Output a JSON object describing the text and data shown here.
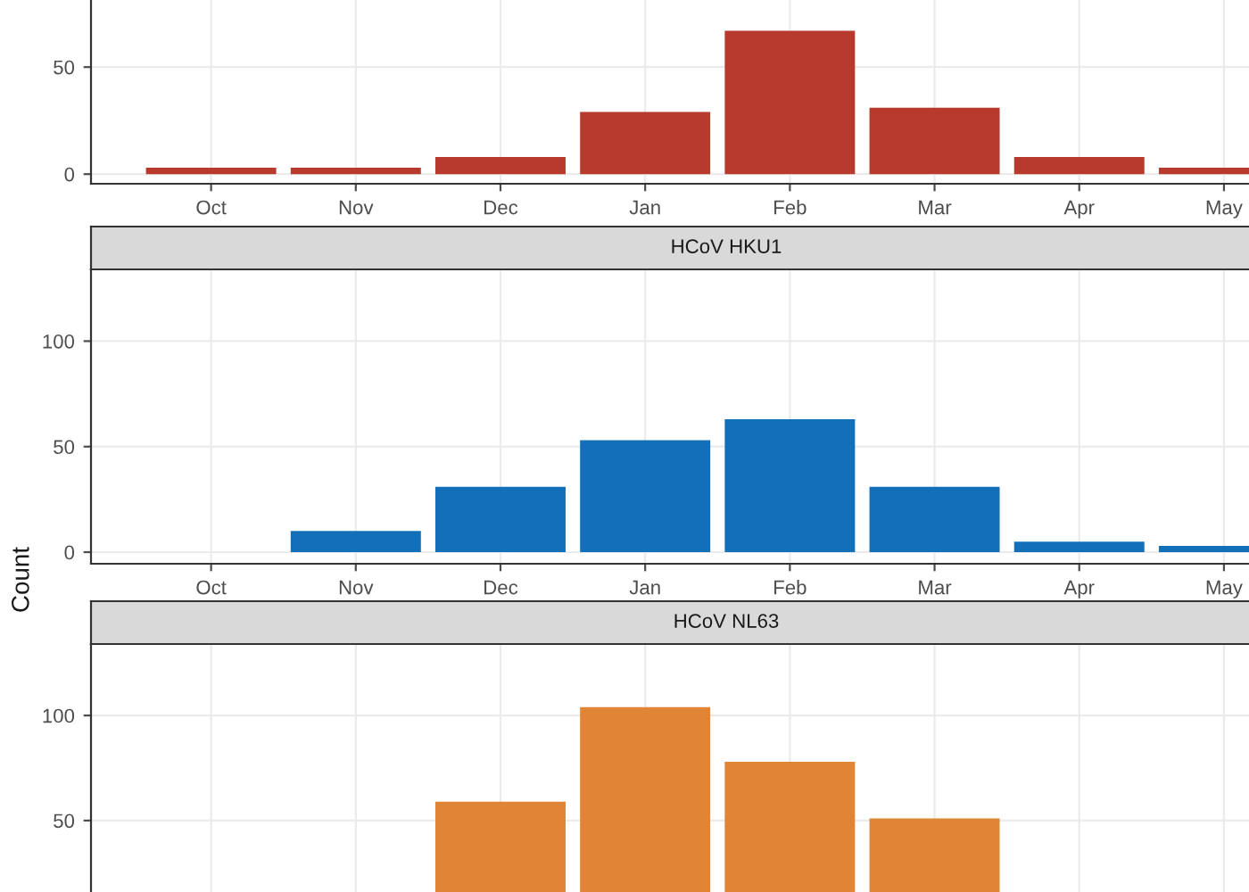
{
  "chart_data": [
    {
      "type": "bar",
      "categories": [
        "Oct",
        "Nov",
        "Dec",
        "Jan",
        "Feb",
        "Mar",
        "Apr",
        "May"
      ],
      "values": [
        3,
        3,
        8,
        29,
        67,
        31,
        8,
        3
      ],
      "color": "#b83a2c",
      "ylim": [
        -4.5,
        83
      ],
      "yticks": [
        0,
        50
      ],
      "grid": true
    },
    {
      "type": "bar",
      "title": "HCoV HKU1",
      "ylabel": "Count",
      "categories": [
        "Oct",
        "Nov",
        "Dec",
        "Jan",
        "Feb",
        "Mar",
        "Apr",
        "May"
      ],
      "values": [
        0,
        10,
        31,
        53,
        63,
        31,
        5,
        3
      ],
      "color": "#1170b8",
      "ylim": [
        -5.5,
        134
      ],
      "yticks": [
        0,
        50,
        100
      ],
      "grid": true
    },
    {
      "type": "bar",
      "title": "HCoV NL63",
      "categories": [
        null,
        null,
        null,
        null,
        null,
        null,
        null,
        null
      ],
      "values": [
        null,
        null,
        59,
        104,
        78,
        51,
        null,
        null
      ],
      "color": "#df8535",
      "ylim": [
        16,
        134
      ],
      "yticks": [
        50,
        100
      ],
      "grid": true,
      "tick_labels": "y"
    }
  ]
}
